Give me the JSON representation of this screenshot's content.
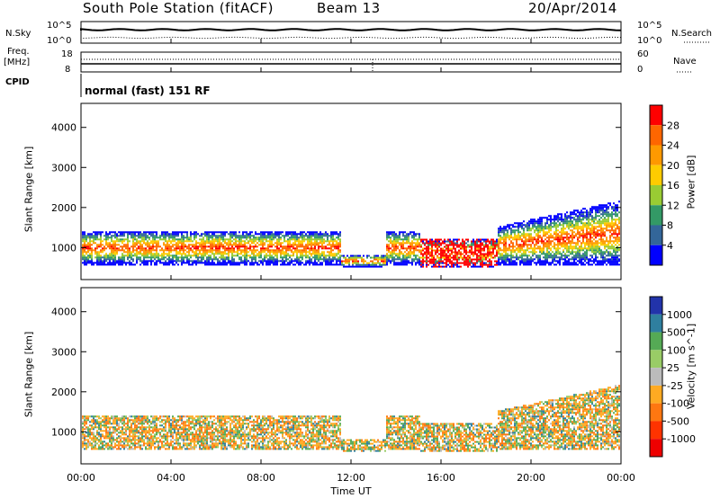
{
  "header": {
    "station": "South Pole Station (fitACF)",
    "beam": "Beam 13",
    "date": "20/Apr/2014"
  },
  "top_panels": {
    "nsky_label": "N.Sky",
    "nsearch_label": "N.Search",
    "noise_ticks": [
      "10^5",
      "10^0"
    ],
    "freq_label": "Freq.",
    "freq_unit": "[MHz]",
    "freq_ticks": [
      "18",
      "8"
    ],
    "nave_label": "Nave",
    "nave_ticks": [
      "60",
      "0"
    ],
    "cpid_label": "CPID",
    "cpid_value": "normal (fast) 151 RF"
  },
  "chart_data": [
    {
      "type": "heatmap",
      "name": "power",
      "ylabel": "Slant Range [km]",
      "yticks": [
        1000,
        2000,
        3000,
        4000
      ],
      "ylim": [
        200,
        4600
      ],
      "xlim": [
        0,
        24
      ],
      "colorbar_label": "Power [dB]",
      "colorbar_ticks": [
        "28",
        "24",
        "20",
        "16",
        "12",
        "8",
        "4"
      ],
      "colors": [
        "#ff0000",
        "#ff6600",
        "#ff9900",
        "#ffcc00",
        "#99cc33",
        "#339966",
        "#336699",
        "#0000ff"
      ]
    },
    {
      "type": "heatmap",
      "name": "velocity",
      "ylabel": "Slant Range [km]",
      "yticks": [
        1000,
        2000,
        3000,
        4000
      ],
      "ylim": [
        200,
        4600
      ],
      "xlim": [
        0,
        24
      ],
      "colorbar_label": "Velocity [m s^-1]",
      "colorbar_ticks": [
        "1000",
        "500",
        "100",
        "25",
        "-25",
        "-100",
        "-500",
        "-1000"
      ],
      "colors": [
        "#2233aa",
        "#2f7f9f",
        "#55aa55",
        "#99cc66",
        "#bbbbbb",
        "#ffaa22",
        "#ff7711",
        "#ff3300",
        "#ee0000"
      ]
    }
  ],
  "xaxis": {
    "ticks": [
      "00:00",
      "04:00",
      "08:00",
      "12:00",
      "16:00",
      "20:00",
      "00:00"
    ],
    "label": "Time UT"
  }
}
